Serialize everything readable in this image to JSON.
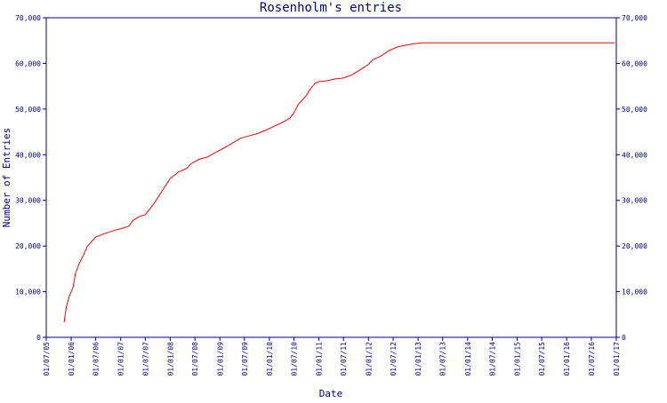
{
  "chart_data": {
    "type": "line",
    "title": "Rosenholm's entries",
    "xlabel": "Date",
    "ylabel": "Number of Entries",
    "ylim": [
      0,
      70000
    ],
    "yticks": [
      {
        "value": 0,
        "label": "0"
      },
      {
        "value": 10000,
        "label": "10,000"
      },
      {
        "value": 20000,
        "label": "20,000"
      },
      {
        "value": 30000,
        "label": "30,000"
      },
      {
        "value": 40000,
        "label": "40,000"
      },
      {
        "value": 50000,
        "label": "50,000"
      },
      {
        "value": 60000,
        "label": "60,000"
      },
      {
        "value": 70000,
        "label": "70,000"
      }
    ],
    "xticks": [
      "01/07/05",
      "01/01/06",
      "01/07/06",
      "01/01/07",
      "01/07/07",
      "01/01/08",
      "01/07/08",
      "01/01/09",
      "01/07/09",
      "01/01/10",
      "01/07/10",
      "01/01/11",
      "01/07/11",
      "01/01/12",
      "01/07/12",
      "01/01/13",
      "01/07/13",
      "01/01/14",
      "01/07/14",
      "01/01/15",
      "01/07/15",
      "01/01/16",
      "01/07/16",
      "01/01/17"
    ],
    "x_domain": [
      "2005-07-01",
      "2017-01-01"
    ],
    "grid": false,
    "colors": {
      "axis": "#000080",
      "text": "#000080",
      "series": "#ff0000"
    },
    "series": [
      {
        "points": [
          [
            "2005-11-10",
            3300
          ],
          [
            "2005-11-25",
            6500
          ],
          [
            "2005-12-15",
            8800
          ],
          [
            "2006-01-15",
            11000
          ],
          [
            "2006-02-01",
            14000
          ],
          [
            "2006-03-01",
            16200
          ],
          [
            "2006-04-01",
            18000
          ],
          [
            "2006-05-01",
            20000
          ],
          [
            "2006-06-01",
            21000
          ],
          [
            "2006-07-01",
            22000
          ],
          [
            "2006-09-01",
            22700
          ],
          [
            "2006-11-01",
            23300
          ],
          [
            "2007-01-01",
            23800
          ],
          [
            "2007-03-01",
            24300
          ],
          [
            "2007-04-01",
            25600
          ],
          [
            "2007-05-15",
            26400
          ],
          [
            "2007-07-01",
            26900
          ],
          [
            "2007-09-01",
            29200
          ],
          [
            "2007-11-01",
            32000
          ],
          [
            "2008-01-01",
            34800
          ],
          [
            "2008-03-01",
            36200
          ],
          [
            "2008-05-01",
            37000
          ],
          [
            "2008-06-01",
            38000
          ],
          [
            "2008-08-01",
            39000
          ],
          [
            "2008-10-01",
            39500
          ],
          [
            "2008-12-01",
            40500
          ],
          [
            "2009-02-01",
            41500
          ],
          [
            "2009-04-01",
            42500
          ],
          [
            "2009-06-01",
            43600
          ],
          [
            "2009-08-01",
            44100
          ],
          [
            "2009-10-01",
            44600
          ],
          [
            "2009-12-01",
            45300
          ],
          [
            "2010-02-01",
            46200
          ],
          [
            "2010-04-01",
            47000
          ],
          [
            "2010-06-01",
            48000
          ],
          [
            "2010-07-01",
            49200
          ],
          [
            "2010-08-01",
            51000
          ],
          [
            "2010-10-01",
            53000
          ],
          [
            "2010-11-01",
            54500
          ],
          [
            "2010-12-01",
            55600
          ],
          [
            "2011-01-01",
            56000
          ],
          [
            "2011-03-01",
            56200
          ],
          [
            "2011-05-01",
            56600
          ],
          [
            "2011-07-01",
            56800
          ],
          [
            "2011-09-01",
            57500
          ],
          [
            "2011-11-01",
            58600
          ],
          [
            "2012-01-01",
            59800
          ],
          [
            "2012-02-01",
            60800
          ],
          [
            "2012-04-01",
            61600
          ],
          [
            "2012-06-01",
            62800
          ],
          [
            "2012-08-01",
            63600
          ],
          [
            "2012-10-01",
            64000
          ],
          [
            "2012-12-01",
            64300
          ],
          [
            "2013-02-01",
            64500
          ],
          [
            "2016-12-20",
            64500
          ]
        ]
      }
    ]
  }
}
